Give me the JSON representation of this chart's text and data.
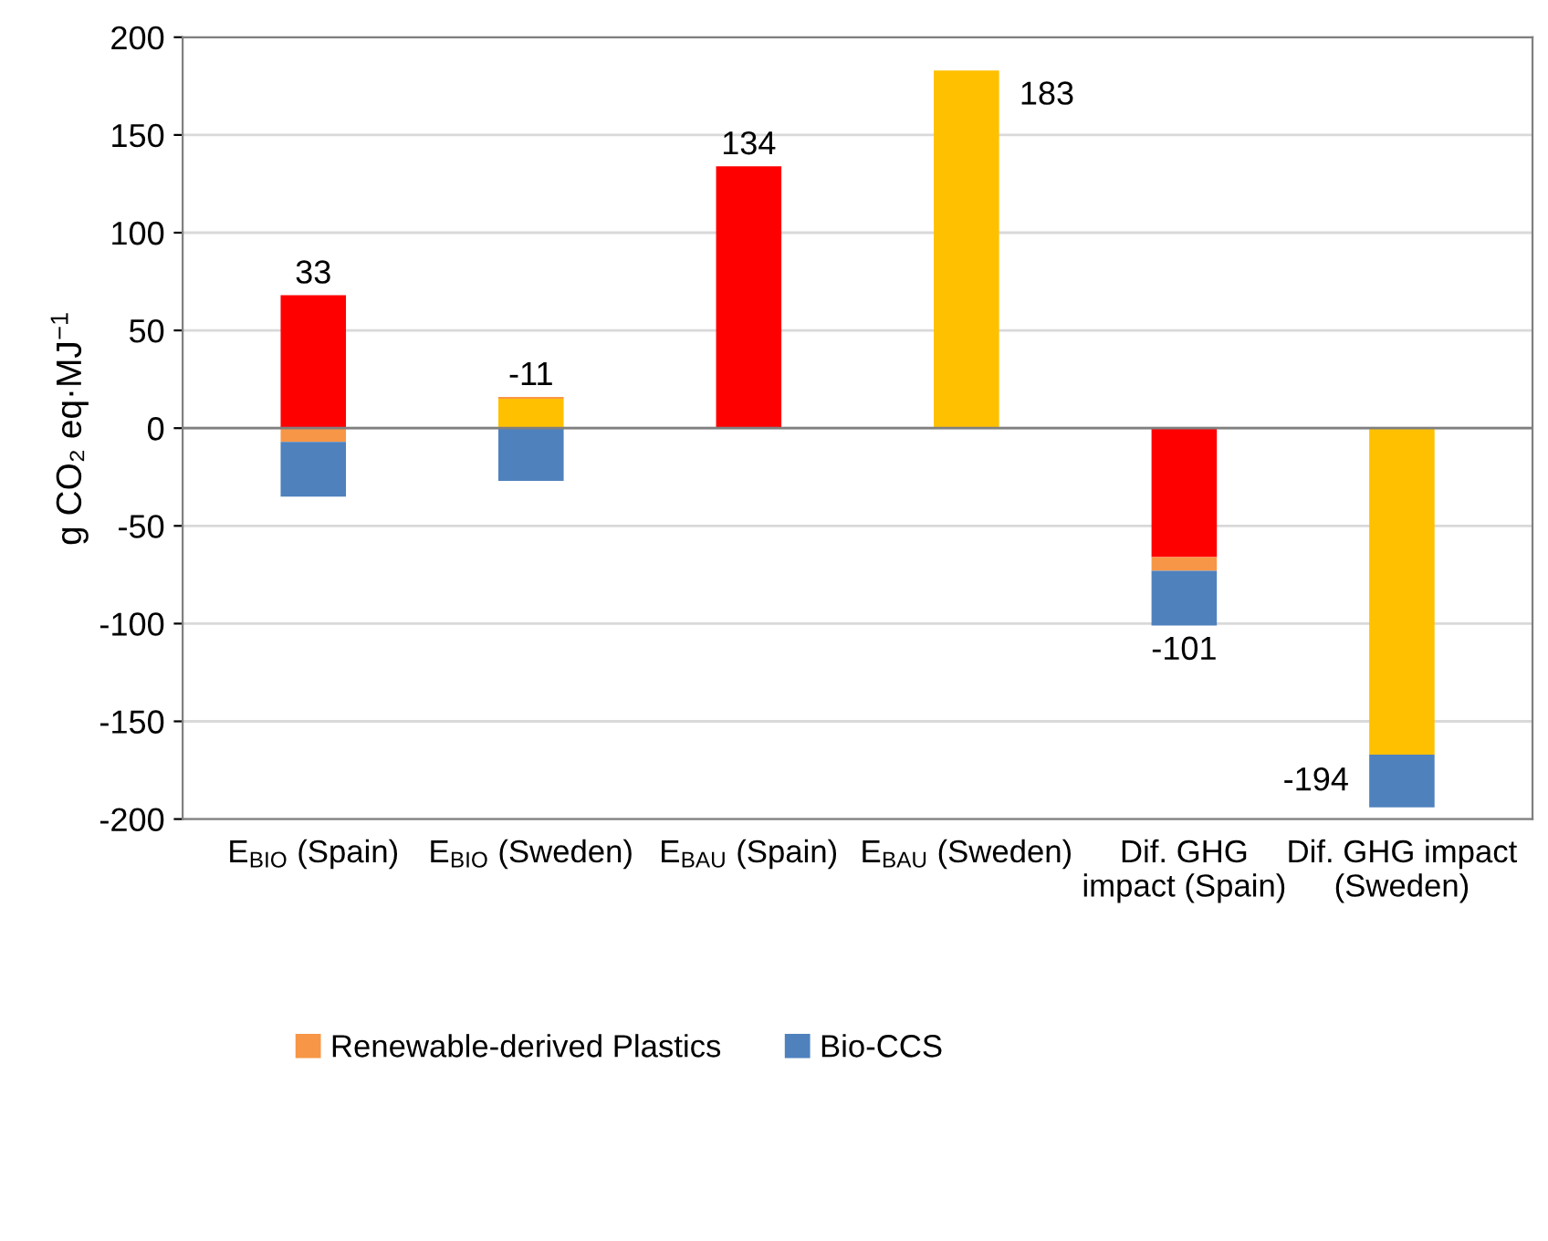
{
  "chart_data": {
    "type": "bar",
    "stacked": true,
    "categories": [
      "E$_{BIO}$ (Spain)",
      "E$_{BIO}$ (Sweden)",
      "E$_{BAU}$ (Spain)",
      "E$_{BAU}$ (Sweden)",
      "Dif. GHG impact (Spain)",
      "Dif. GHG impact (Sweden)"
    ],
    "series": [
      {
        "colors": [
          "#ff0000",
          "#ffc000",
          "#ff0000",
          "#ffc000",
          "#ff0000",
          "#ffc000"
        ],
        "values": [
          68,
          15,
          134,
          183,
          -66,
          -167
        ]
      },
      {
        "name": "Renewable-derived Plastics",
        "color": "#f79646",
        "values": [
          -7,
          1,
          null,
          null,
          -7,
          null
        ]
      },
      {
        "name": "Bio-CCS",
        "color": "#4f81bd",
        "values": [
          -28,
          -27,
          null,
          null,
          -28,
          -27
        ]
      }
    ],
    "totals": [
      "33",
      "-11",
      "134",
      "183",
      "-101",
      "-194"
    ],
    "ylabel": "g CO₂ eq·MJ$^{−1}$",
    "ylim": [
      -200,
      200
    ],
    "yticks": [
      -200,
      -150,
      -100,
      -50,
      0,
      50,
      100,
      150,
      200
    ],
    "grid": "y",
    "legend": "bottom"
  }
}
